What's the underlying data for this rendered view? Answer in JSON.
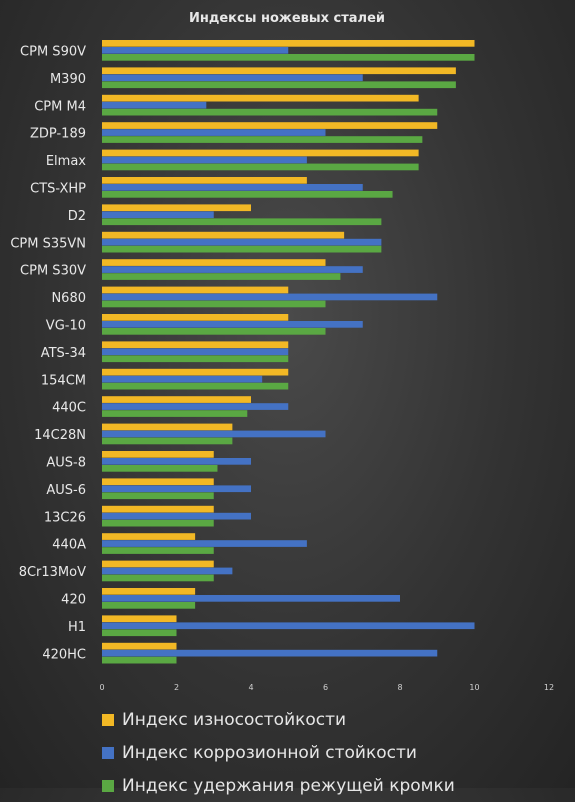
{
  "chart_data": {
    "type": "bar",
    "orientation": "horizontal",
    "title": "Индексы ножевых сталей",
    "categories": [
      "CPM S90V",
      "M390",
      "CPM M4",
      "ZDP-189",
      "Elmax",
      "CTS-XHP",
      "D2",
      "CPM S35VN",
      "CPM S30V",
      "N680",
      "VG-10",
      "ATS-34",
      "154CM",
      "440C",
      "14C28N",
      "AUS-8",
      "AUS-6",
      "13C26",
      "440A",
      "8Cr13MoV",
      "420",
      "H1",
      "420HC"
    ],
    "series": [
      {
        "name": "Индекс износостойкости",
        "color": "#f2b825",
        "values": [
          10,
          9.5,
          8.5,
          9,
          8.5,
          5.5,
          4,
          6.5,
          6,
          5,
          5,
          5,
          5,
          4,
          3.5,
          3,
          3,
          3,
          2.5,
          3,
          2.5,
          2,
          2
        ]
      },
      {
        "name": "Индекс коррозионной стойкости",
        "color": "#4472c4",
        "values": [
          5,
          7,
          2.8,
          6,
          5.5,
          7,
          3,
          7.5,
          7,
          9,
          7,
          5,
          4.3,
          5,
          6,
          4,
          4,
          4,
          5.5,
          3.5,
          8,
          10,
          9
        ]
      },
      {
        "name": "Индекс удержания режущей кромки",
        "color": "#5aa843",
        "values": [
          10,
          9.5,
          9,
          8.6,
          8.5,
          7.8,
          7.5,
          7.5,
          6.4,
          6,
          6,
          5,
          5,
          3.9,
          3.5,
          3.1,
          3,
          3,
          3,
          3,
          2.5,
          2,
          2
        ]
      }
    ],
    "xlim": [
      0,
      12
    ],
    "xticks": [
      "0",
      "2",
      "4",
      "6",
      "8",
      "10",
      "12"
    ],
    "legend_position": "bottom",
    "grid": false
  }
}
